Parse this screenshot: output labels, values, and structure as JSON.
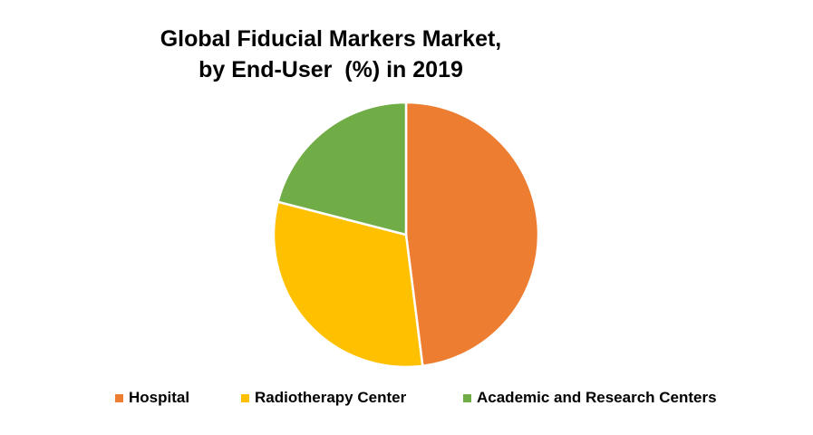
{
  "chart_data": {
    "type": "pie",
    "title_lines": [
      "Global Fiducial Markers Market,",
      "by End-User  (%) in 2019"
    ],
    "categories": [
      "Hospital",
      "Radiotherapy Center",
      "Academic and Research Centers"
    ],
    "values": [
      48,
      31,
      21
    ],
    "colors": [
      "#ED7D31",
      "#FFC000",
      "#70AD47"
    ],
    "start_angle_deg": 0,
    "direction": "clockwise",
    "legend_position": "bottom"
  }
}
